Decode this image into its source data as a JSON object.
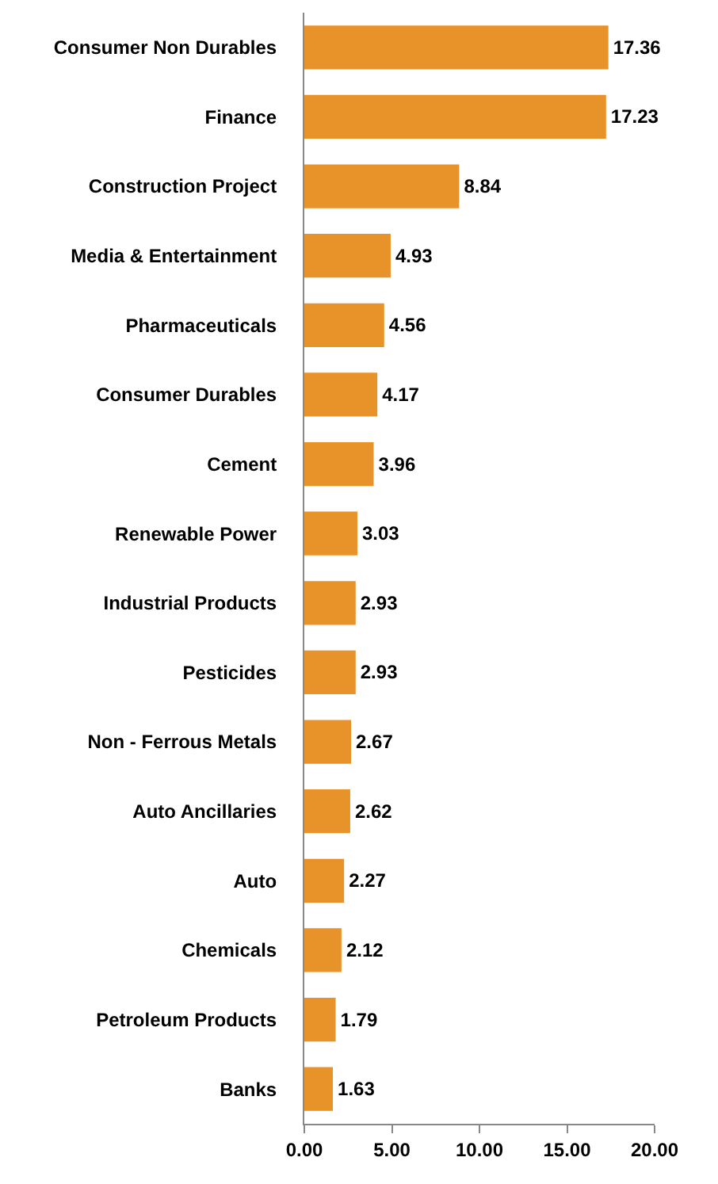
{
  "chart_data": {
    "type": "bar",
    "orientation": "horizontal",
    "categories": [
      "Consumer Non Durables",
      "Finance",
      "Construction Project",
      "Media & Entertainment",
      "Pharmaceuticals",
      "Consumer Durables",
      "Cement",
      "Renewable Power",
      "Industrial Products",
      "Pesticides",
      "Non - Ferrous Metals",
      "Auto Ancillaries",
      "Auto",
      "Chemicals",
      "Petroleum Products",
      "Banks"
    ],
    "values": [
      17.36,
      17.23,
      8.84,
      4.93,
      4.56,
      4.17,
      3.96,
      3.03,
      2.93,
      2.93,
      2.67,
      2.62,
      2.27,
      2.12,
      1.79,
      1.63
    ],
    "color": "#e8922a",
    "xlim": [
      0,
      20
    ],
    "xticks": [
      {
        "value": 0,
        "label": "0.00"
      },
      {
        "value": 5,
        "label": "5.00"
      },
      {
        "value": 10,
        "label": "10.00"
      },
      {
        "value": 15,
        "label": "15.00"
      },
      {
        "value": 20,
        "label": "20.00"
      }
    ],
    "data_labels": true
  }
}
